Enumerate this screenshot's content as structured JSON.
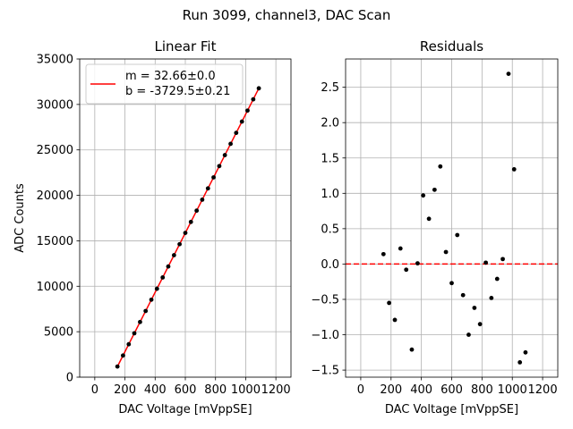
{
  "figure": {
    "suptitle": "Run 3099, channel3, DAC Scan"
  },
  "chart_data": [
    {
      "type": "line",
      "title": "Linear Fit",
      "xlabel": "DAC Voltage [mVppSE]",
      "ylabel": "ADC Counts",
      "xlim": [
        -100,
        1300
      ],
      "ylim": [
        0,
        35000
      ],
      "xticks": [
        0,
        200,
        400,
        600,
        800,
        1000,
        1200
      ],
      "yticks": [
        0,
        5000,
        10000,
        15000,
        20000,
        25000,
        30000,
        35000
      ],
      "grid": true,
      "legend": {
        "placement": "upper-left",
        "line1": "m = 32.66±0.0",
        "line2": "b = -3729.5±0.21"
      },
      "fit_line": {
        "name": "fit",
        "color": "#ff0000",
        "x": [
          150,
          1087
        ],
        "y": [
          1169.5,
          31772.9
        ]
      },
      "series": [
        {
          "name": "data",
          "color": "#000000",
          "x": [
            150,
            187,
            225,
            262,
            300,
            337,
            375,
            412,
            450,
            487,
            525,
            562,
            600,
            637,
            675,
            712,
            750,
            787,
            825,
            862,
            900,
            937,
            975,
            1012,
            1050,
            1087
          ],
          "y": [
            1169.6,
            2378,
            3619,
            4828,
            6068,
            7277,
            8518,
            9727,
            10968,
            12177,
            13418,
            14626,
            15867,
            17076,
            18317,
            19526,
            20766,
            21975,
            23216,
            24425,
            25665,
            26874,
            28117,
            29324,
            30563,
            31772
          ]
        }
      ]
    },
    {
      "type": "scatter",
      "title": "Residuals",
      "xlabel": "DAC Voltage [mVppSE]",
      "ylabel": "",
      "xlim": [
        -100,
        1300
      ],
      "ylim": [
        -1.6,
        2.9
      ],
      "xticks": [
        0,
        200,
        400,
        600,
        800,
        1000,
        1200
      ],
      "yticks": [
        -1.5,
        -1.0,
        -0.5,
        0.0,
        0.5,
        1.0,
        1.5,
        2.0,
        2.5
      ],
      "ytick_labels": [
        "−1.5",
        "−1.0",
        "−0.5",
        "0.0",
        "0.5",
        "1.0",
        "1.5",
        "2.0",
        "2.5"
      ],
      "grid": true,
      "zero_line": {
        "y": 0,
        "color": "#ff0000",
        "style": "dashed"
      },
      "series": [
        {
          "name": "residuals",
          "color": "#000000",
          "x": [
            150,
            187,
            225,
            262,
            300,
            337,
            375,
            412,
            450,
            487,
            525,
            562,
            600,
            637,
            675,
            712,
            750,
            787,
            825,
            862,
            900,
            937,
            975,
            1012,
            1050,
            1087
          ],
          "y": [
            0.14,
            -0.55,
            -0.79,
            0.22,
            -0.08,
            -1.21,
            0.01,
            0.97,
            0.64,
            1.05,
            1.38,
            0.17,
            -0.27,
            0.41,
            -0.44,
            -1.0,
            -0.62,
            -0.85,
            0.02,
            -0.48,
            -0.21,
            0.07,
            2.69,
            1.34,
            -1.39,
            -1.25
          ]
        }
      ]
    }
  ]
}
